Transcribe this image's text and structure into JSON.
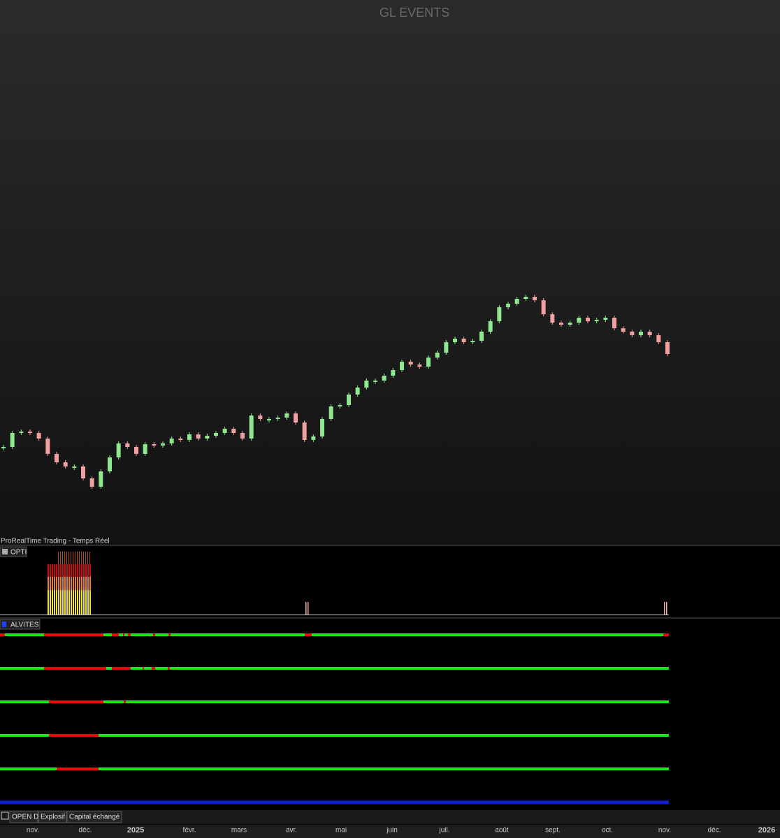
{
  "chart_data": {
    "type": "candles",
    "title": "GL EVENTS",
    "source": "ProRealTime Trading - Temps Réel",
    "up_color": "#8ee68e",
    "down_color": "#f0a0a0",
    "ylim": [
      10,
      40
    ],
    "values": [
      18,
      19,
      19.1,
      19,
      18.6,
      17.5,
      16.9,
      16.6,
      16.6,
      15.75,
      15.15,
      16.25,
      17.25,
      18.25,
      18,
      17.5,
      18.2,
      18.1,
      18.25,
      18.6,
      18.5,
      18.9,
      18.6,
      18.8,
      19,
      19.3,
      19,
      18.6,
      20.25,
      20,
      20,
      20.1,
      20.4,
      19.75,
      18.5,
      18.75,
      20,
      20.9,
      21,
      21.75,
      22.25,
      22.75,
      22.75,
      23.1,
      23.5,
      24.1,
      23.9,
      23.75,
      24.4,
      24.75,
      25.5,
      25.75,
      25.5,
      25.6,
      26.25,
      27,
      28,
      28.25,
      28.6,
      28.75,
      28.5,
      27.5,
      26.9,
      26.75,
      26.9,
      27.25,
      27,
      27.1,
      27.25,
      26.5,
      26.25,
      26,
      26.25,
      26,
      25.5,
      24.65
    ]
  },
  "time_axis": [
    "nov.",
    "déc.",
    "2025",
    "févr.",
    "mars",
    "avr.",
    "mai",
    "juin",
    "juil.",
    "août",
    "sept.",
    "oct.",
    "nov.",
    "déc.",
    "2026"
  ],
  "panels": {
    "opti": "OPTI",
    "alvites": "ALVITES"
  },
  "tabs": [
    "OPEN D",
    "Explosif",
    "Capital échangé"
  ]
}
